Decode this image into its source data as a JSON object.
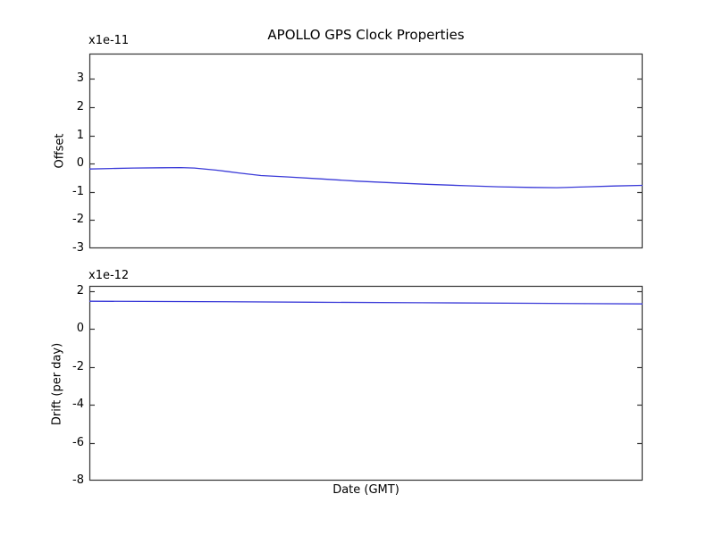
{
  "figure_title": "APOLLO GPS Clock Properties",
  "colors": {
    "background": "#ffffff",
    "line": "#3a3ad8",
    "frame": "#333333",
    "text": "#000000"
  },
  "chart_data": [
    {
      "type": "line",
      "title": "APOLLO GPS Clock Properties",
      "ylabel": "Offset",
      "scale_text": "x1e-11",
      "xlabel": "",
      "ylim": [
        -3.0,
        3.9
      ],
      "yticks": [
        3,
        2,
        1,
        0,
        -1,
        -2,
        -3
      ],
      "xticks": [],
      "grid": false,
      "legend": null,
      "series": [
        {
          "name": "offset",
          "x_frac": [
            0,
            0.04,
            0.08,
            0.13,
            0.165,
            0.19,
            0.23,
            0.27,
            0.31,
            0.36,
            0.42,
            0.485,
            0.55,
            0.61,
            0.68,
            0.74,
            0.8,
            0.845,
            0.9,
            0.95,
            1.0
          ],
          "y": [
            -0.19,
            -0.17,
            -0.155,
            -0.145,
            -0.14,
            -0.155,
            -0.23,
            -0.33,
            -0.42,
            -0.47,
            -0.54,
            -0.62,
            -0.68,
            -0.73,
            -0.78,
            -0.82,
            -0.84,
            -0.85,
            -0.82,
            -0.79,
            -0.77
          ]
        }
      ]
    },
    {
      "type": "line",
      "title": "",
      "ylabel": "Drift (per day)",
      "scale_text": "x1e-12",
      "xlabel": "Date (GMT)",
      "ylim": [
        -8.0,
        2.27
      ],
      "yticks": [
        2,
        0,
        -2,
        -4,
        -6,
        -8
      ],
      "xticks": [],
      "grid": false,
      "legend": null,
      "series": [
        {
          "name": "drift",
          "x_frac": [
            0,
            0.2,
            0.4,
            0.6,
            0.8,
            1.0
          ],
          "y": [
            1.46,
            1.44,
            1.41,
            1.38,
            1.35,
            1.32
          ]
        }
      ]
    }
  ]
}
